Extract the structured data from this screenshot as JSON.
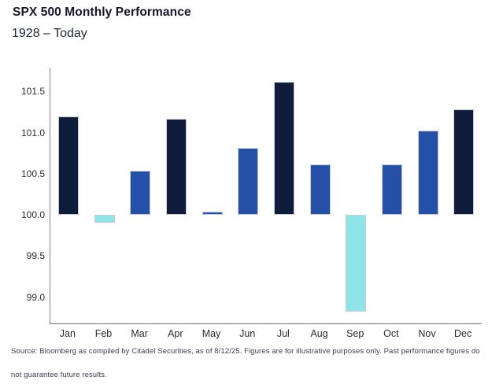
{
  "header": {
    "title": "SPX 500 Monthly Performance",
    "subtitle": "1928 – Today"
  },
  "footer": {
    "lines": [
      "Source: Bloomberg as compiled by Citadel Securities, as of 8/12/25. Figures are for illustrative purposes only. Past performance figures do",
      "not guarantee future results."
    ]
  },
  "colors": {
    "navy": "#101c3c",
    "blue": "#2451a7",
    "cyan": "#8ee4e6",
    "axis": "#808080",
    "tick_text": "#2b2b2b"
  },
  "chart_data": {
    "type": "bar",
    "title": "SPX 500 Monthly Performance",
    "subtitle": "1928 – Today",
    "categories": [
      "Jan",
      "Feb",
      "Mar",
      "Apr",
      "May",
      "Jun",
      "Jul",
      "Aug",
      "Sep",
      "Oct",
      "Nov",
      "Dec"
    ],
    "values": [
      101.2,
      99.9,
      100.54,
      101.17,
      100.04,
      100.81,
      101.62,
      100.61,
      98.82,
      100.61,
      101.02,
      101.28
    ],
    "bar_color_keys": [
      "navy",
      "cyan",
      "blue",
      "navy",
      "blue",
      "blue",
      "navy",
      "blue",
      "cyan",
      "blue",
      "blue",
      "navy"
    ],
    "baseline": 100,
    "xlabel": "",
    "ylabel": "",
    "yticks": [
      99.0,
      99.5,
      100.0,
      100.5,
      101.0,
      101.5
    ],
    "ylim": [
      98.68,
      101.79
    ],
    "grid": false,
    "legend": "none"
  }
}
